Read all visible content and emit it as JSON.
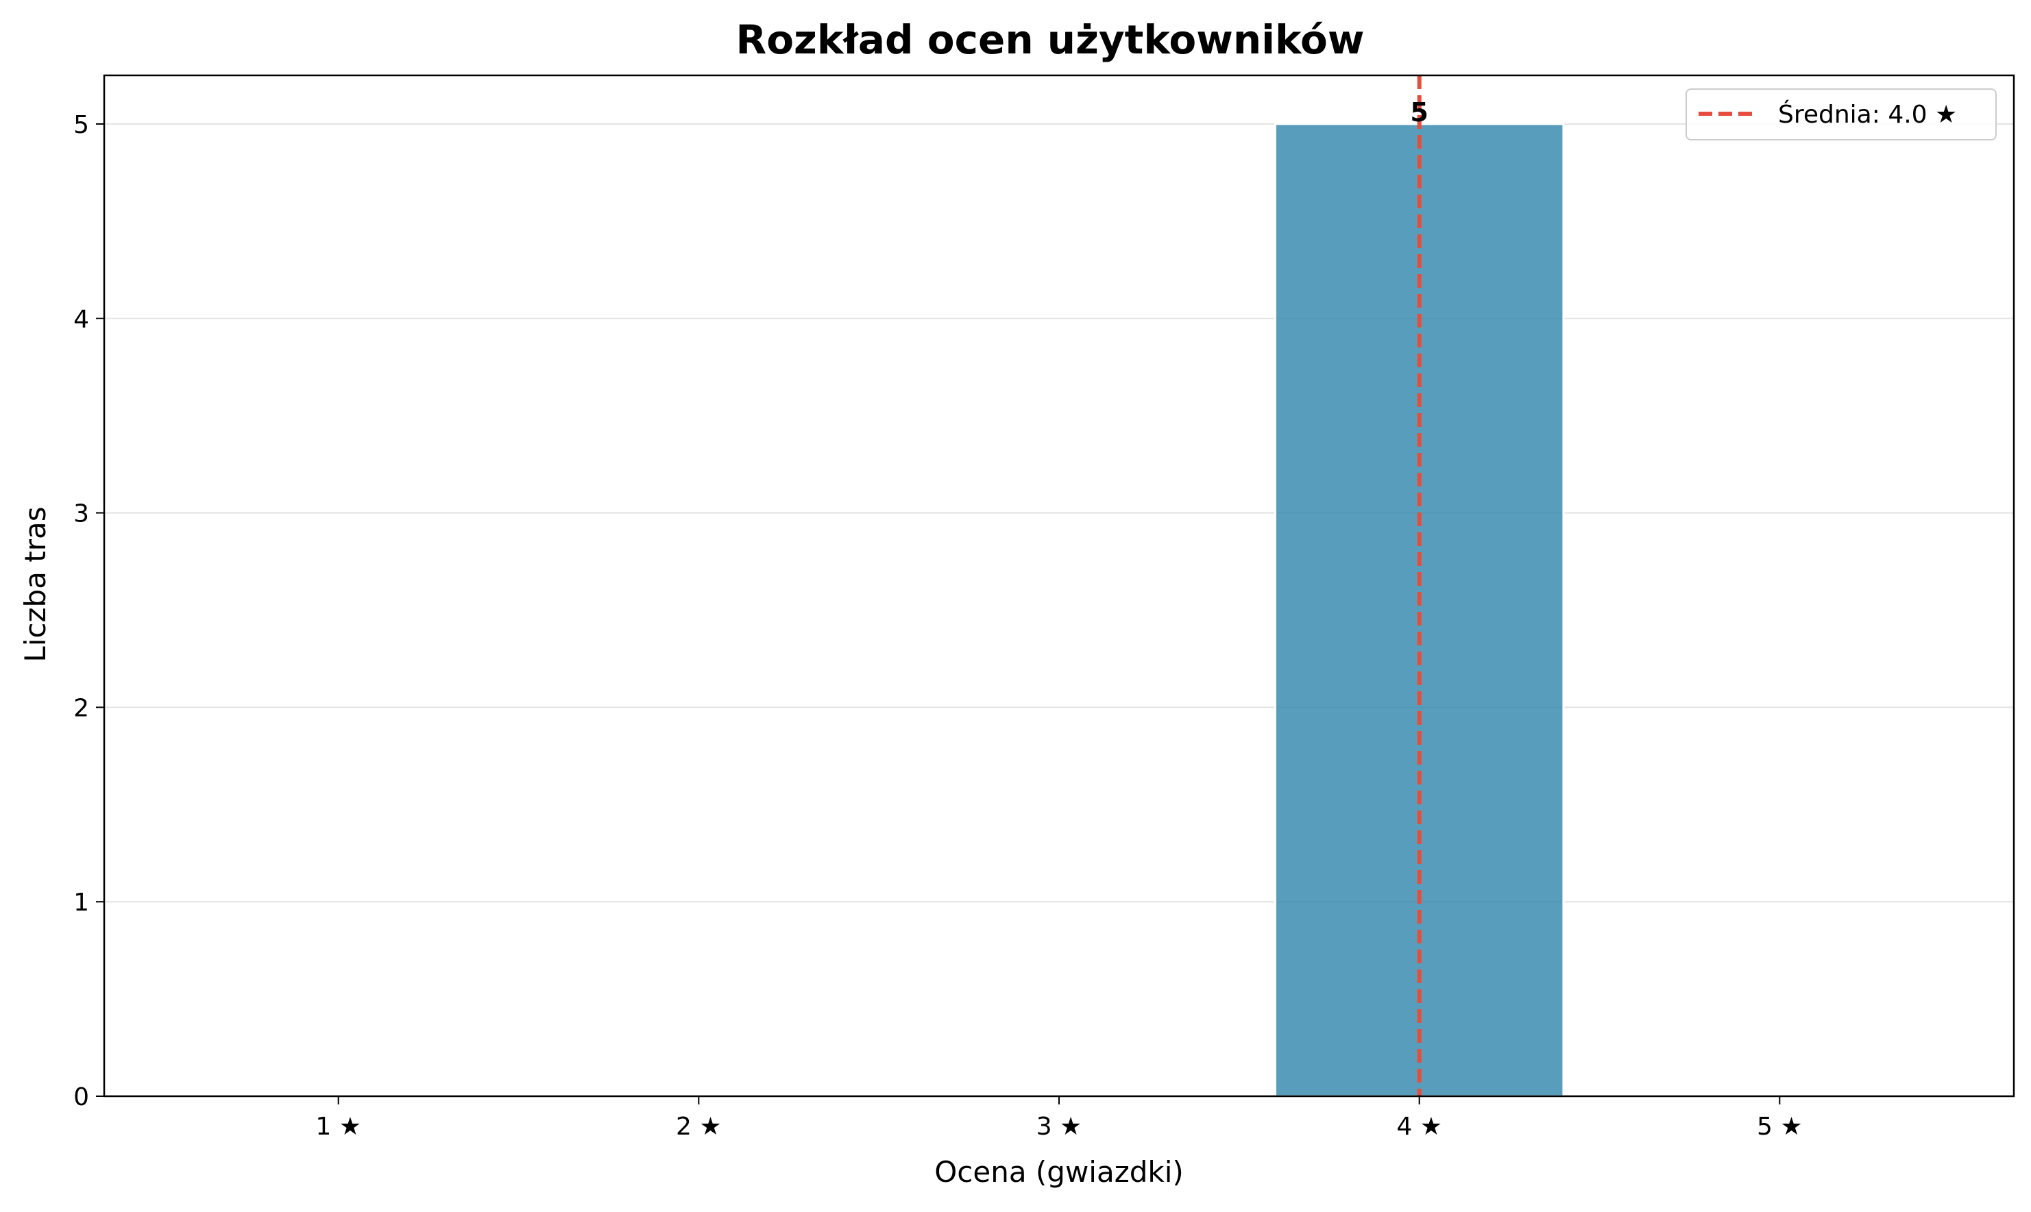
{
  "chart_data": {
    "type": "bar",
    "title": "Rozkład ocen użytkowników",
    "xlabel": "Ocena (gwiazdki)",
    "ylabel": "Liczba tras",
    "categories": [
      "1 ★",
      "2 ★",
      "3 ★",
      "4 ★",
      "5 ★"
    ],
    "x": [
      1,
      2,
      3,
      4,
      5
    ],
    "values": [
      0,
      0,
      0,
      5,
      0
    ],
    "data_labels": {
      "4": "5"
    },
    "xlim": [
      0.35,
      5.65
    ],
    "ylim": [
      0,
      5.25
    ],
    "yticks": [
      0,
      1,
      2,
      3,
      4,
      5
    ],
    "grid": "y",
    "bar_width": 0.8,
    "bar_color": "#2E86AB",
    "mean_line": {
      "value": 4.0,
      "style": "dashed",
      "color": "#E74C3C",
      "label": "Średnia: 4.0 ★"
    },
    "legend_position": "top-right"
  }
}
